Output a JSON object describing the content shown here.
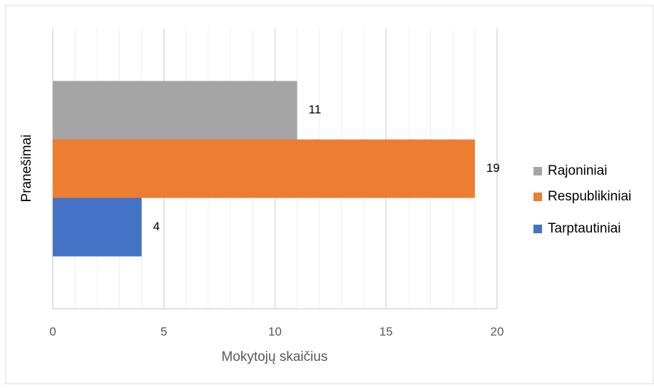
{
  "chart_data": {
    "type": "hbar",
    "categories": [
      null
    ],
    "series": [
      {
        "name": "Rajoniniai",
        "color": "#a5a5a5",
        "values": [
          11
        ]
      },
      {
        "name": "Respublikiniai",
        "color": "#ed7d31",
        "values": [
          19
        ]
      },
      {
        "name": "Tarptautiniai",
        "color": "#4472c4",
        "values": [
          4
        ]
      }
    ],
    "xlim": [
      0,
      20
    ],
    "xticks": [
      0,
      5,
      10,
      15,
      20
    ],
    "minor_xticks": [
      1,
      2,
      3,
      4,
      6,
      7,
      8,
      9,
      11,
      12,
      13,
      14,
      16,
      17,
      18,
      19
    ],
    "xlabel": "Mokytojų skaičius",
    "ylabel": "Pranešimai",
    "grid": true,
    "legend": "right"
  }
}
